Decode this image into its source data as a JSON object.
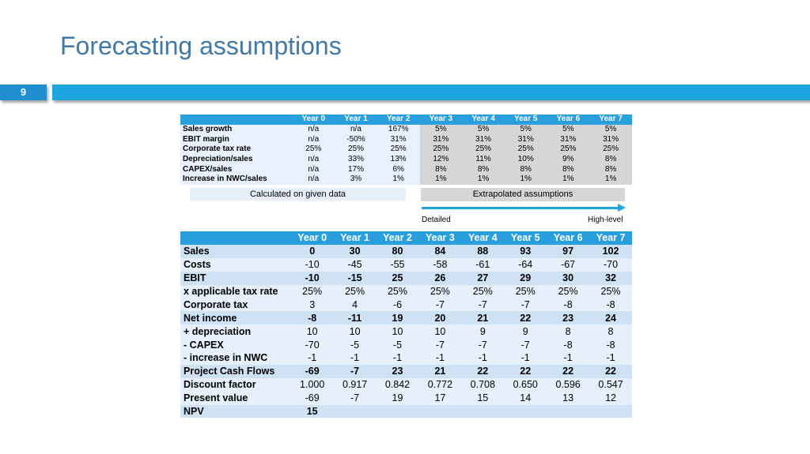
{
  "slide": {
    "title": "Forecasting assumptions",
    "page_number": "9"
  },
  "colors": {
    "title": "#4178a4",
    "accent": "#1da5e0",
    "header": "#2a9fdd",
    "calc_bg": "#e8f1fb",
    "extrapolated_bg": "#d6d6d6"
  },
  "assumptions": {
    "headers": [
      "Year 0",
      "Year 1",
      "Year 2",
      "Year 3",
      "Year 4",
      "Year 5",
      "Year 6",
      "Year 7"
    ],
    "rows": [
      {
        "label": "Sales growth",
        "values": [
          "n/a",
          "n/a",
          "167%",
          "5%",
          "5%",
          "5%",
          "5%",
          "5%"
        ]
      },
      {
        "label": "EBIT margin",
        "values": [
          "n/a",
          "-50%",
          "31%",
          "31%",
          "31%",
          "31%",
          "31%",
          "31%"
        ]
      },
      {
        "label": "Corporate tax rate",
        "values": [
          "25%",
          "25%",
          "25%",
          "25%",
          "25%",
          "25%",
          "25%",
          "25%"
        ]
      },
      {
        "label": "Depreciation/sales",
        "values": [
          "n/a",
          "33%",
          "13%",
          "12%",
          "11%",
          "10%",
          "9%",
          "8%"
        ]
      },
      {
        "label": "CAPEX/sales",
        "values": [
          "n/a",
          "17%",
          "6%",
          "8%",
          "8%",
          "8%",
          "8%",
          "8%"
        ]
      },
      {
        "label": "Increase in NWC/sales",
        "values": [
          "n/a",
          "3%",
          "1%",
          "1%",
          "1%",
          "1%",
          "1%",
          "1%"
        ]
      }
    ],
    "calculated_label": "Calculated on given data",
    "extrapolated_label": "Extrapolated assumptions",
    "detailed_label": "Detailed",
    "high_level_label": "High-level"
  },
  "cash_flow": {
    "headers": [
      "Year 0",
      "Year 1",
      "Year 2",
      "Year 3",
      "Year 4",
      "Year 5",
      "Year 6",
      "Year 7"
    ],
    "rows": [
      {
        "label": "Sales",
        "bold": true,
        "values": [
          "0",
          "30",
          "80",
          "84",
          "88",
          "93",
          "97",
          "102"
        ]
      },
      {
        "label": "Costs",
        "bold": false,
        "values": [
          "-10",
          "-45",
          "-55",
          "-58",
          "-61",
          "-64",
          "-67",
          "-70"
        ]
      },
      {
        "label": "EBIT",
        "bold": true,
        "values": [
          "-10",
          "-15",
          "25",
          "26",
          "27",
          "29",
          "30",
          "32"
        ]
      },
      {
        "label": "x applicable tax rate",
        "bold": false,
        "values": [
          "25%",
          "25%",
          "25%",
          "25%",
          "25%",
          "25%",
          "25%",
          "25%"
        ]
      },
      {
        "label": "Corporate tax",
        "bold": false,
        "values": [
          "3",
          "4",
          "-6",
          "-7",
          "-7",
          "-7",
          "-8",
          "-8"
        ]
      },
      {
        "label": "Net income",
        "bold": true,
        "values": [
          "-8",
          "-11",
          "19",
          "20",
          "21",
          "22",
          "23",
          "24"
        ]
      },
      {
        "label": "+ depreciation",
        "bold": false,
        "values": [
          "10",
          "10",
          "10",
          "10",
          "9",
          "9",
          "8",
          "8"
        ]
      },
      {
        "label": "- CAPEX",
        "bold": false,
        "values": [
          "-70",
          "-5",
          "-5",
          "-7",
          "-7",
          "-7",
          "-8",
          "-8"
        ]
      },
      {
        "label": "- increase in NWC",
        "bold": false,
        "values": [
          "-1",
          "-1",
          "-1",
          "-1",
          "-1",
          "-1",
          "-1",
          "-1"
        ]
      },
      {
        "label": "Project Cash Flows",
        "bold": true,
        "values": [
          "-69",
          "-7",
          "23",
          "21",
          "22",
          "22",
          "22",
          "22"
        ]
      },
      {
        "label": "Discount factor",
        "bold": false,
        "values": [
          "1.000",
          "0.917",
          "0.842",
          "0.772",
          "0.708",
          "0.650",
          "0.596",
          "0.547"
        ]
      },
      {
        "label": "Present value",
        "bold": false,
        "values": [
          "-69",
          "-7",
          "19",
          "17",
          "15",
          "14",
          "13",
          "12"
        ]
      },
      {
        "label": "NPV",
        "bold": true,
        "values": [
          "15",
          "",
          "",
          "",
          "",
          "",
          "",
          ""
        ]
      }
    ]
  }
}
